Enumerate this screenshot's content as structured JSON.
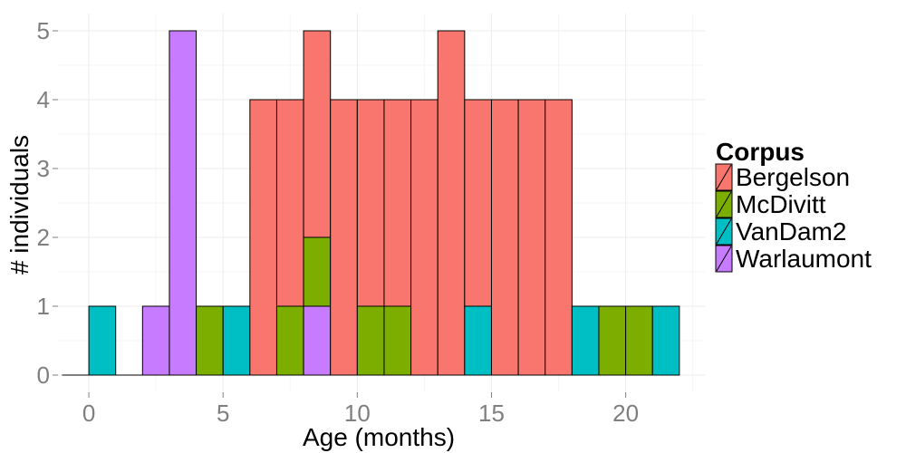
{
  "chart_data": {
    "type": "bar",
    "stacked": true,
    "xlabel": "Age (months)",
    "ylabel": "# individuals",
    "xlim": [
      -1.15,
      22.95
    ],
    "ylim": [
      -0.25,
      5.25
    ],
    "x_ticks": [
      0,
      5,
      10,
      15,
      20
    ],
    "y_ticks": [
      0,
      1,
      2,
      3,
      4,
      5
    ],
    "bin_width": 1,
    "bin_starts": [
      -1,
      0,
      1,
      2,
      3,
      4,
      5,
      6,
      7,
      8,
      9,
      10,
      11,
      12,
      13,
      14,
      15,
      16,
      17,
      18,
      19,
      20,
      21
    ],
    "grid": true,
    "legend": {
      "title": "Corpus",
      "position": "right"
    },
    "series": [
      {
        "name": "Bergelson",
        "color": "#F8766D",
        "values": [
          0,
          0,
          0,
          0,
          0,
          0,
          0,
          4,
          3,
          3,
          4,
          3,
          3,
          4,
          5,
          3,
          4,
          4,
          4,
          0,
          0,
          0,
          0
        ]
      },
      {
        "name": "McDivitt",
        "color": "#7CAE00",
        "values": [
          0,
          0,
          0,
          0,
          0,
          1,
          0,
          0,
          1,
          1,
          0,
          1,
          1,
          0,
          0,
          0,
          0,
          0,
          0,
          0,
          1,
          1,
          0
        ]
      },
      {
        "name": "VanDam2",
        "color": "#00BFC4",
        "values": [
          0,
          1,
          0,
          0,
          0,
          0,
          1,
          0,
          0,
          0,
          0,
          0,
          0,
          0,
          0,
          1,
          0,
          0,
          0,
          1,
          0,
          0,
          1
        ]
      },
      {
        "name": "Warlaumont",
        "color": "#C77CFF",
        "values": [
          0,
          0,
          0,
          1,
          5,
          0,
          0,
          0,
          0,
          1,
          0,
          0,
          0,
          0,
          0,
          0,
          0,
          0,
          0,
          0,
          0,
          0,
          0
        ]
      }
    ]
  }
}
